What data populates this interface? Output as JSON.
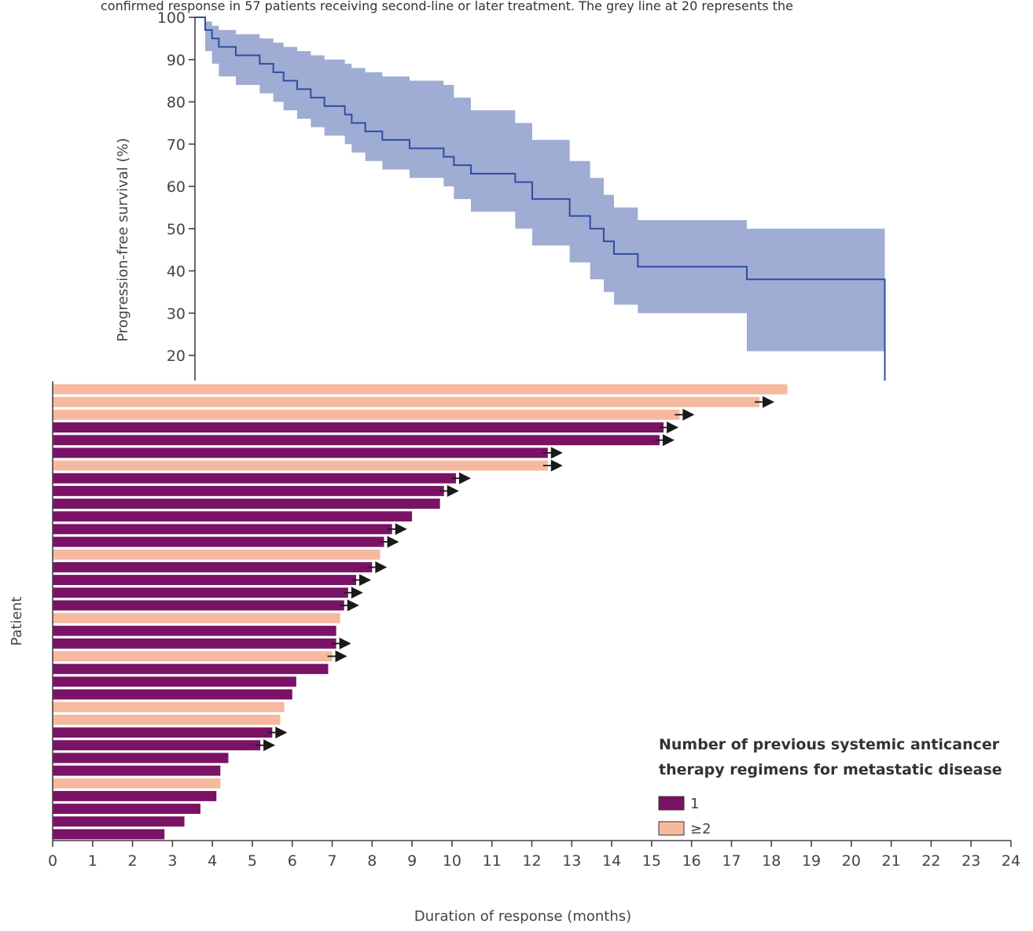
{
  "caption_fragment": "confirmed response in 57 patients receiving second-line or later treatment. The grey line at 20 represents the",
  "colors": {
    "km_line": "#2d4fa0",
    "km_ci": "#9facd4",
    "one_prior": "#7a1266",
    "two_or_more_prior": "#f6b9a0",
    "axis": "#444444",
    "arrow": "#1a1a1a"
  },
  "chart_data": [
    {
      "type": "line",
      "subtype": "kaplan-meier-with-ci",
      "ylabel": "Progression-free survival (%)",
      "xlabel": "",
      "ylim": [
        20,
        100
      ],
      "xlim": [
        0,
        24
      ],
      "yticks": [
        "100",
        "90",
        "80",
        "70",
        "60",
        "50",
        "40",
        "30",
        "20"
      ],
      "step_times": [
        0,
        0.3,
        0.5,
        0.7,
        1.2,
        1.9,
        2.3,
        2.6,
        3.0,
        3.4,
        3.8,
        4.4,
        4.6,
        5.0,
        5.5,
        6.3,
        7.3,
        7.6,
        8.1,
        9.4,
        9.9,
        11.0,
        11.6,
        12.0,
        12.3,
        13.0,
        16.2,
        24.3
      ],
      "survival": [
        100,
        97,
        95,
        93,
        91,
        89,
        87,
        85,
        83,
        81,
        79,
        77,
        75,
        73,
        71,
        69,
        67,
        65,
        63,
        61,
        57,
        53,
        50,
        47,
        44,
        41,
        38,
        24
      ],
      "ci_upper": [
        100,
        99,
        98,
        97,
        96,
        95,
        94,
        93,
        92,
        91,
        90,
        89,
        88,
        87,
        86,
        85,
        84,
        81,
        78,
        75,
        71,
        66,
        62,
        58,
        55,
        52,
        50,
        50
      ],
      "ci_lower": [
        100,
        92,
        89,
        86,
        84,
        82,
        80,
        78,
        76,
        74,
        72,
        70,
        68,
        66,
        64,
        62,
        60,
        57,
        54,
        50,
        46,
        42,
        38,
        35,
        32,
        30,
        21,
        21
      ]
    },
    {
      "type": "bar",
      "orientation": "horizontal",
      "xlabel": "Duration of response (months)",
      "ylabel": "Patient",
      "xlim": [
        0,
        24
      ],
      "xticks": [
        "0",
        "1",
        "2",
        "3",
        "4",
        "5",
        "6",
        "7",
        "8",
        "9",
        "10",
        "11",
        "12",
        "13",
        "14",
        "15",
        "16",
        "17",
        "18",
        "19",
        "20",
        "21",
        "22",
        "23",
        "24"
      ],
      "legend": {
        "title_line1": "Number of previous systemic anticancer",
        "title_line2": "therapy regimens for metastatic disease",
        "items": [
          {
            "label": "1",
            "group": 1
          },
          {
            "label": "≥2",
            "group": 2
          }
        ]
      },
      "bars": [
        {
          "value": 18.4,
          "group": 2,
          "ongoing": false
        },
        {
          "value": 17.7,
          "group": 2,
          "ongoing": true
        },
        {
          "value": 15.7,
          "group": 2,
          "ongoing": true
        },
        {
          "value": 15.3,
          "group": 1,
          "ongoing": true
        },
        {
          "value": 15.2,
          "group": 1,
          "ongoing": true
        },
        {
          "value": 12.4,
          "group": 1,
          "ongoing": true
        },
        {
          "value": 12.4,
          "group": 2,
          "ongoing": true
        },
        {
          "value": 10.1,
          "group": 1,
          "ongoing": true
        },
        {
          "value": 9.8,
          "group": 1,
          "ongoing": true
        },
        {
          "value": 9.7,
          "group": 1,
          "ongoing": false
        },
        {
          "value": 9.0,
          "group": 1,
          "ongoing": false
        },
        {
          "value": 8.5,
          "group": 1,
          "ongoing": true
        },
        {
          "value": 8.3,
          "group": 1,
          "ongoing": true
        },
        {
          "value": 8.2,
          "group": 2,
          "ongoing": false
        },
        {
          "value": 8.0,
          "group": 1,
          "ongoing": true
        },
        {
          "value": 7.6,
          "group": 1,
          "ongoing": true
        },
        {
          "value": 7.4,
          "group": 1,
          "ongoing": true
        },
        {
          "value": 7.3,
          "group": 1,
          "ongoing": true
        },
        {
          "value": 7.2,
          "group": 2,
          "ongoing": false
        },
        {
          "value": 7.1,
          "group": 1,
          "ongoing": false
        },
        {
          "value": 7.1,
          "group": 1,
          "ongoing": true
        },
        {
          "value": 7.0,
          "group": 2,
          "ongoing": true
        },
        {
          "value": 6.9,
          "group": 1,
          "ongoing": false
        },
        {
          "value": 6.1,
          "group": 1,
          "ongoing": false
        },
        {
          "value": 6.0,
          "group": 1,
          "ongoing": false
        },
        {
          "value": 5.8,
          "group": 2,
          "ongoing": false
        },
        {
          "value": 5.7,
          "group": 2,
          "ongoing": false
        },
        {
          "value": 5.5,
          "group": 1,
          "ongoing": true
        },
        {
          "value": 5.2,
          "group": 1,
          "ongoing": true
        },
        {
          "value": 4.4,
          "group": 1,
          "ongoing": false
        },
        {
          "value": 4.2,
          "group": 1,
          "ongoing": false
        },
        {
          "value": 4.2,
          "group": 2,
          "ongoing": false
        },
        {
          "value": 4.1,
          "group": 1,
          "ongoing": false
        },
        {
          "value": 3.7,
          "group": 1,
          "ongoing": false
        },
        {
          "value": 3.3,
          "group": 1,
          "ongoing": false
        },
        {
          "value": 2.8,
          "group": 1,
          "ongoing": false
        }
      ]
    }
  ]
}
